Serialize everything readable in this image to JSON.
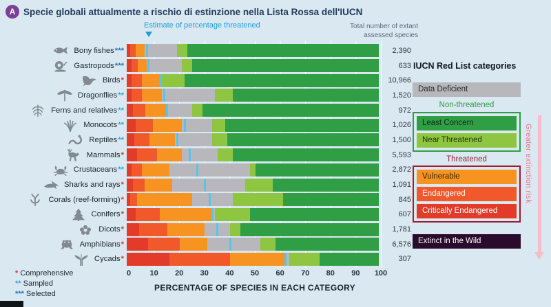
{
  "header": {
    "badge": "A",
    "badge_color": "#7d3f98",
    "title": "Specie globali attualmente a rischio di estinzione nella Lista Rossa dell'IUCN"
  },
  "annotations": {
    "estimate_label": "Estimate of percentage threatened",
    "estimate_color": "#1e9ed9",
    "total_label": "Total number of extant assessed species"
  },
  "footnotes": [
    {
      "marker": "*",
      "label": "Comprehensive",
      "color": "#d6392e"
    },
    {
      "marker": "**",
      "label": "Sampled",
      "color": "#29a9de"
    },
    {
      "marker": "***",
      "label": "Selected",
      "color": "#1b74b8"
    }
  ],
  "legend": {
    "title": "IUCN Red List categories",
    "data_deficient": {
      "label": "Data Deficient",
      "color": "#b8b7bc",
      "text_color": "#26262b"
    },
    "non_threatened": {
      "label": "Non-threatened",
      "label_color": "#2f9e45",
      "border_color": "#2f9e45",
      "items": [
        {
          "label": "Least Concern",
          "color": "#2f9e45",
          "text_color": "#0d2c16"
        },
        {
          "label": "Near Threatened",
          "color": "#8ec642",
          "text_color": "#1f3008"
        }
      ]
    },
    "threatened": {
      "label": "Threatened",
      "label_color": "#9c1c30",
      "border_color": "#9c1c30",
      "items": [
        {
          "label": "Vulnerable",
          "color": "#f79421",
          "text_color": "#3a2504"
        },
        {
          "label": "Endangered",
          "color": "#f1592b",
          "text_color": "#ffffff"
        },
        {
          "label": "Critically Endangered",
          "color": "#e23b2a",
          "text_color": "#ffffff"
        }
      ]
    },
    "extinct": {
      "label": "Extinct in the Wild",
      "color": "#2b0b2d",
      "text_color": "#ffffff"
    },
    "risk_arrow": {
      "label": "Greater extinction risk",
      "text_color": "#e9748c",
      "arrow_color": "#f6bcc8"
    }
  },
  "chart_data": {
    "type": "bar",
    "stacked": true,
    "orientation": "horizontal",
    "title": "Specie globali attualmente a rischio di estinzione nella Lista Rossa dell'IUCN",
    "xlabel": "PERCENTAGE OF SPECIES IN EACH CATEGORY",
    "unit": "%",
    "xlim": [
      0,
      100
    ],
    "x_ticks": [
      0,
      10,
      20,
      30,
      40,
      50,
      60,
      70,
      80,
      90,
      100
    ],
    "marker_color": "#5bc3ea",
    "marker_meaning": "Estimate of percentage threatened",
    "segments": [
      {
        "key": "critically_endangered",
        "label": "Critically Endangered",
        "color": "#e23b2a"
      },
      {
        "key": "endangered",
        "label": "Endangered",
        "color": "#f1592b"
      },
      {
        "key": "vulnerable",
        "label": "Vulnerable",
        "color": "#f79421"
      },
      {
        "key": "data_deficient",
        "label": "Data Deficient",
        "color": "#b8b7bc"
      },
      {
        "key": "near_threatened",
        "label": "Near Threatened",
        "color": "#8ec642"
      },
      {
        "key": "least_concern",
        "label": "Least Concern",
        "color": "#2f9e45"
      }
    ],
    "rows": [
      {
        "label": "Bony fishes",
        "asterisks": "***",
        "icon": "fish-icon",
        "total": "2,390",
        "threat_estimate": 8,
        "values": {
          "critically_endangered": 1.5,
          "endangered": 2,
          "vulnerable": 3.5,
          "data_deficient": 13,
          "near_threatened": 4,
          "least_concern": 76
        }
      },
      {
        "label": "Gastropods",
        "asterisks": "***",
        "icon": "snail-icon",
        "total": "633",
        "threat_estimate": 8.5,
        "values": {
          "critically_endangered": 2,
          "endangered": 2.5,
          "vulnerable": 3.5,
          "data_deficient": 14,
          "near_threatened": 4,
          "least_concern": 74
        }
      },
      {
        "label": "Birds",
        "asterisks": "*",
        "icon": "bird-icon",
        "total": "10,966",
        "threat_estimate": 13.5,
        "values": {
          "critically_endangered": 2,
          "endangered": 4,
          "vulnerable": 7.5,
          "data_deficient": 0.5,
          "near_threatened": 9,
          "least_concern": 77
        }
      },
      {
        "label": "Dragonflies",
        "asterisks": "**",
        "icon": "dragonfly-icon",
        "total": "1,520",
        "threat_estimate": 15,
        "values": {
          "critically_endangered": 2,
          "endangered": 4,
          "vulnerable": 8,
          "data_deficient": 21,
          "near_threatened": 7,
          "least_concern": 58
        }
      },
      {
        "label": "Ferns and relatives",
        "asterisks": "**",
        "icon": "fern-icon",
        "total": "972",
        "threat_estimate": 16,
        "values": {
          "critically_endangered": 2.5,
          "endangered": 5,
          "vulnerable": 8.5,
          "data_deficient": 10,
          "near_threatened": 4,
          "least_concern": 70
        }
      },
      {
        "label": "Monocots",
        "asterisks": "**",
        "icon": "monocot-icon",
        "total": "1,026",
        "threat_estimate": 23,
        "values": {
          "critically_endangered": 3.5,
          "endangered": 7,
          "vulnerable": 11.5,
          "data_deficient": 12,
          "near_threatened": 5,
          "least_concern": 61
        }
      },
      {
        "label": "Reptiles",
        "asterisks": "**",
        "icon": "reptile-icon",
        "total": "1,500",
        "threat_estimate": 20,
        "values": {
          "critically_endangered": 3,
          "endangered": 6,
          "vulnerable": 10,
          "data_deficient": 15,
          "near_threatened": 6,
          "least_concern": 60
        }
      },
      {
        "label": "Mammals",
        "asterisks": "*",
        "icon": "deer-icon",
        "total": "5,593",
        "threat_estimate": 25,
        "values": {
          "critically_endangered": 4,
          "endangered": 8,
          "vulnerable": 10,
          "data_deficient": 14,
          "near_threatened": 6,
          "least_concern": 58
        }
      },
      {
        "label": "Crustaceans",
        "asterisks": "**",
        "icon": "crab-icon",
        "total": "2,872",
        "threat_estimate": 28,
        "values": {
          "critically_endangered": 2,
          "endangered": 4,
          "vulnerable": 11,
          "data_deficient": 32,
          "near_threatened": 2,
          "least_concern": 49
        }
      },
      {
        "label": "Sharks and rays",
        "asterisks": "*",
        "icon": "shark-icon",
        "total": "1,091",
        "threat_estimate": 31,
        "values": {
          "critically_endangered": 2.5,
          "endangered": 4.5,
          "vulnerable": 11,
          "data_deficient": 29,
          "near_threatened": 11,
          "least_concern": 42
        }
      },
      {
        "label": "Corals (reef-forming)",
        "asterisks": "*",
        "icon": "coral-icon",
        "total": "845",
        "threat_estimate": 33,
        "values": {
          "critically_endangered": 1.5,
          "endangered": 2.5,
          "vulnerable": 22,
          "data_deficient": 16,
          "near_threatened": 20,
          "least_concern": 38
        }
      },
      {
        "label": "Conifers",
        "asterisks": "*",
        "icon": "conifer-icon",
        "total": "607",
        "threat_estimate": 34,
        "values": {
          "critically_endangered": 3.5,
          "endangered": 9.5,
          "vulnerable": 21,
          "data_deficient": 1,
          "near_threatened": 14,
          "least_concern": 51
        }
      },
      {
        "label": "Dicots",
        "asterisks": "*",
        "icon": "flower-icon",
        "total": "1,781",
        "threat_estimate": 36,
        "values": {
          "critically_endangered": 5,
          "endangered": 11,
          "vulnerable": 15,
          "data_deficient": 10,
          "near_threatened": 4,
          "least_concern": 55
        }
      },
      {
        "label": "Amphibians",
        "asterisks": "*",
        "icon": "frog-icon",
        "total": "6,576",
        "threat_estimate": 41,
        "values": {
          "critically_endangered": 8.5,
          "endangered": 12.5,
          "vulnerable": 11,
          "data_deficient": 21,
          "near_threatened": 6,
          "least_concern": 41
        }
      },
      {
        "label": "Cycads",
        "asterisks": "*",
        "icon": "cycad-icon",
        "total": "307",
        "threat_estimate": 63,
        "values": {
          "critically_endangered": 17,
          "endangered": 24,
          "vulnerable": 22,
          "data_deficient": 1.5,
          "near_threatened": 12,
          "least_concern": 23.5
        }
      }
    ]
  }
}
